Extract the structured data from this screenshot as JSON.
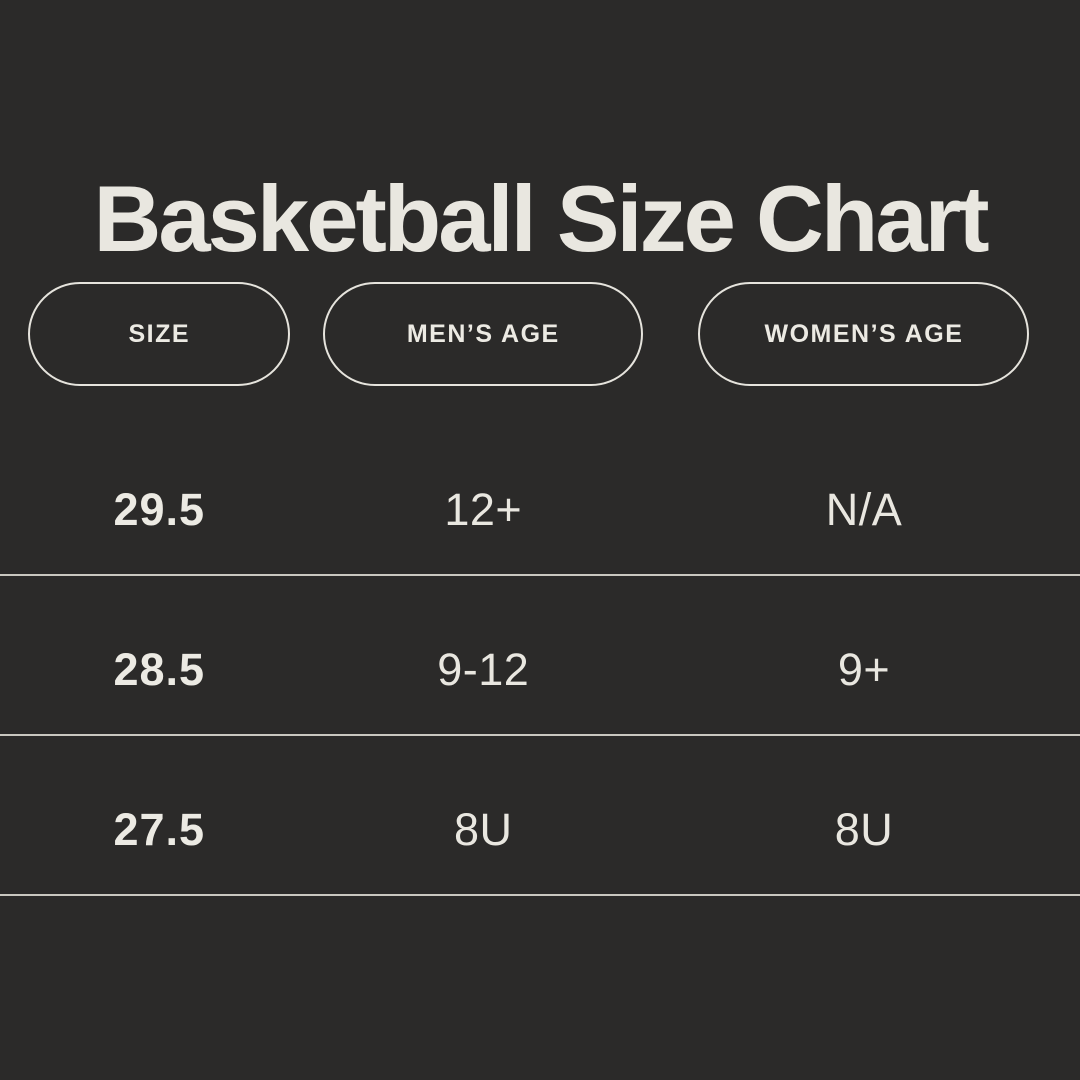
{
  "title": "Basketball Size Chart",
  "colors": {
    "background": "#2b2a29",
    "text_cream": "#eae8e1",
    "pill_border": "#e6e4dd",
    "divider": "#c9c7c0"
  },
  "table": {
    "headers": [
      {
        "label": "SIZE"
      },
      {
        "label": "MEN’S AGE"
      },
      {
        "label": "WOMEN’S AGE"
      }
    ],
    "rows": [
      {
        "size": "29.5",
        "mens_age": "12+",
        "womens_age": "N/A"
      },
      {
        "size": "28.5",
        "mens_age": "9-12",
        "womens_age": "9+"
      },
      {
        "size": "27.5",
        "mens_age": "8U",
        "womens_age": "8U"
      }
    ]
  },
  "chart_data": {
    "type": "table",
    "title": "Basketball Size Chart",
    "columns": [
      "SIZE",
      "MEN’S AGE",
      "WOMEN’S AGE"
    ],
    "rows": [
      [
        "29.5",
        "12+",
        "N/A"
      ],
      [
        "28.5",
        "9-12",
        "9+"
      ],
      [
        "27.5",
        "8U",
        "8U"
      ]
    ],
    "layout_hints": {
      "theme": "dark",
      "header_style": "outlined-pill",
      "row_dividers": "full-width-horizontal-lines"
    }
  }
}
